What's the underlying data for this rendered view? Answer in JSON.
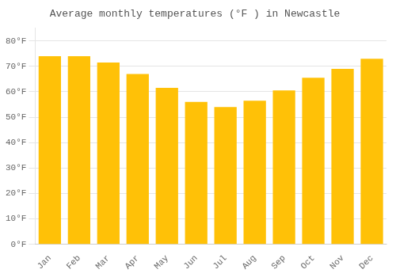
{
  "chart_data": {
    "type": "bar",
    "title": "Average monthly temperatures (°F ) in Newcastle",
    "categories": [
      "Jan",
      "Feb",
      "Mar",
      "Apr",
      "May",
      "Jun",
      "Jul",
      "Aug",
      "Sep",
      "Oct",
      "Nov",
      "Dec"
    ],
    "values": [
      74,
      74,
      71.5,
      67,
      61.5,
      56,
      54,
      56.5,
      60.5,
      65.5,
      69,
      73
    ],
    "color": "#FFC107",
    "ylim": [
      0,
      85
    ],
    "yticks": [
      {
        "value": 0,
        "label": "0°F"
      },
      {
        "value": 10,
        "label": "10°F"
      },
      {
        "value": 20,
        "label": "20°F"
      },
      {
        "value": 30,
        "label": "30°F"
      },
      {
        "value": 40,
        "label": "40°F"
      },
      {
        "value": 50,
        "label": "50°F"
      },
      {
        "value": 60,
        "label": "60°F"
      },
      {
        "value": 70,
        "label": "70°F"
      },
      {
        "value": 80,
        "label": "80°F"
      }
    ],
    "grid": true
  }
}
